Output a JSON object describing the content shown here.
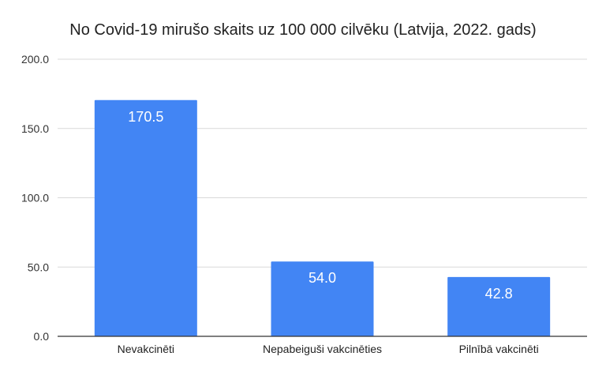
{
  "chart_data": {
    "type": "bar",
    "title": "No Covid-19 mirušo skaits uz 100 000 cilvēku (Latvija, 2022. gads)",
    "categories": [
      "Nevakcinēti",
      "Nepabeiguši vakcinēties",
      "Pilnībā vakcinēti"
    ],
    "values": [
      170.5,
      54.0,
      42.8
    ],
    "data_labels": [
      "170.5",
      "54.0",
      "42.8"
    ],
    "ylim": [
      0,
      200
    ],
    "yticks": [
      "0.0",
      "50.0",
      "100.0",
      "150.0",
      "200.0"
    ],
    "xlabel": "",
    "ylabel": "",
    "grid": true,
    "bar_color": "#4285f4",
    "grid_color": "#d9d9d9",
    "axis_color": "#333333"
  }
}
